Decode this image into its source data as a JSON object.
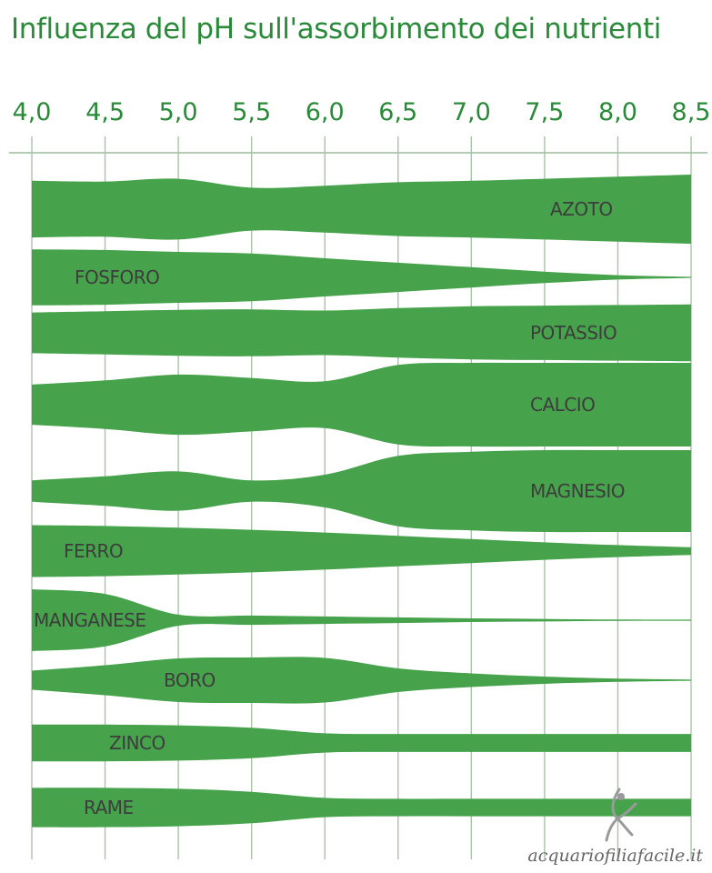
{
  "chart_data": {
    "type": "area",
    "title": "Influenza del pH sull'assorbimento dei nutrienti",
    "x_ticks": [
      "4,0",
      "4,5",
      "5,0",
      "5,5",
      "6,0",
      "6,5",
      "7,0",
      "7,5",
      "8,0",
      "8,5"
    ],
    "x_values": [
      4.0,
      4.5,
      5.0,
      5.5,
      6.0,
      6.5,
      7.0,
      7.5,
      8.0,
      8.5
    ],
    "xlim": [
      4.0,
      8.5
    ],
    "grid": true,
    "series_color": "#46a24b",
    "series": [
      {
        "name": "AZOTO",
        "values": [
          0.82,
          0.8,
          0.88,
          0.62,
          0.68,
          0.78,
          0.82,
          0.88,
          0.94,
          1.0
        ]
      },
      {
        "name": "FOSFORO",
        "values": [
          0.88,
          0.86,
          0.8,
          0.75,
          0.6,
          0.46,
          0.32,
          0.18,
          0.07,
          0.0
        ]
      },
      {
        "name": "POTASSIO",
        "values": [
          0.66,
          0.7,
          0.74,
          0.76,
          0.72,
          0.8,
          0.86,
          0.88,
          0.9,
          0.92
        ]
      },
      {
        "name": "CALCIO",
        "values": [
          0.48,
          0.58,
          0.72,
          0.64,
          0.56,
          0.95,
          1.0,
          1.0,
          1.0,
          1.0
        ]
      },
      {
        "name": "MAGNESIO",
        "values": [
          0.26,
          0.36,
          0.48,
          0.26,
          0.4,
          0.86,
          0.96,
          1.0,
          1.0,
          1.0
        ]
      },
      {
        "name": "FERRO",
        "values": [
          0.95,
          0.92,
          0.86,
          0.78,
          0.68,
          0.56,
          0.44,
          0.32,
          0.22,
          0.14
        ]
      },
      {
        "name": "MANGANESE",
        "values": [
          1.0,
          0.85,
          0.18,
          0.15,
          0.12,
          0.09,
          0.06,
          0.04,
          0.02,
          0.0
        ]
      },
      {
        "name": "BORO",
        "values": [
          0.42,
          0.66,
          0.96,
          1.0,
          0.98,
          0.52,
          0.3,
          0.16,
          0.07,
          0.0
        ]
      },
      {
        "name": "ZINCO",
        "values": [
          0.92,
          0.92,
          0.88,
          0.76,
          0.48,
          0.45,
          0.45,
          0.45,
          0.45,
          0.45
        ]
      },
      {
        "name": "RAME",
        "values": [
          0.9,
          0.9,
          0.86,
          0.72,
          0.44,
          0.4,
          0.4,
          0.4,
          0.4,
          0.4
        ]
      }
    ]
  },
  "watermark": {
    "text": "acquariofiliafacile.it",
    "logo_icon": "fish-icon"
  }
}
